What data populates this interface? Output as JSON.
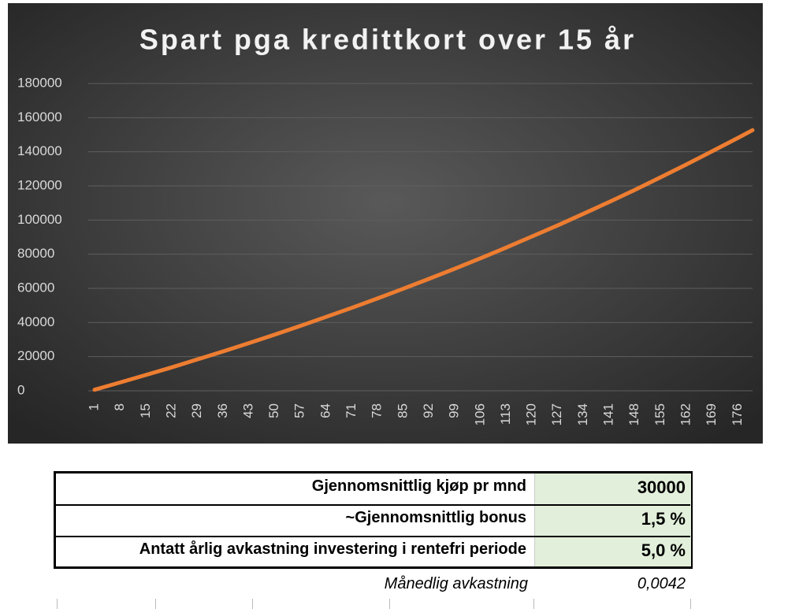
{
  "chart_data": {
    "type": "line",
    "title": "Spart pga kredittkort over 15 år",
    "x": [
      1,
      8,
      15,
      22,
      29,
      36,
      43,
      50,
      57,
      64,
      71,
      78,
      85,
      92,
      99,
      106,
      113,
      120,
      127,
      134,
      141,
      148,
      155,
      162,
      169,
      176,
      180
    ],
    "values": [
      600,
      4900,
      9300,
      13700,
      18400,
      23100,
      27900,
      32900,
      38000,
      43300,
      48600,
      54100,
      59800,
      65600,
      71500,
      77600,
      83900,
      90400,
      96900,
      103700,
      110600,
      117700,
      125100,
      132600,
      140300,
      148100,
      152700
    ],
    "color": "#ed7d31",
    "xlim": [
      1,
      180
    ],
    "xticks": [
      1,
      8,
      15,
      22,
      29,
      36,
      43,
      50,
      57,
      64,
      71,
      78,
      85,
      92,
      99,
      106,
      113,
      120,
      127,
      134,
      141,
      148,
      155,
      162,
      169,
      176
    ],
    "ylim": [
      0,
      180000
    ],
    "yticks": [
      0,
      20000,
      40000,
      60000,
      80000,
      100000,
      120000,
      140000,
      160000,
      180000
    ],
    "grid": true
  },
  "table": {
    "rows": [
      [
        "Gjennomsnittlig kjøp pr mnd",
        "30000"
      ],
      [
        "~Gjennomsnittlig bonus",
        "1,5 %"
      ],
      [
        "Antatt årlig avkastning investering i rentefri periode",
        "5,0 %"
      ]
    ],
    "footer": [
      "Månedlig avkastning",
      "0,0042"
    ]
  }
}
